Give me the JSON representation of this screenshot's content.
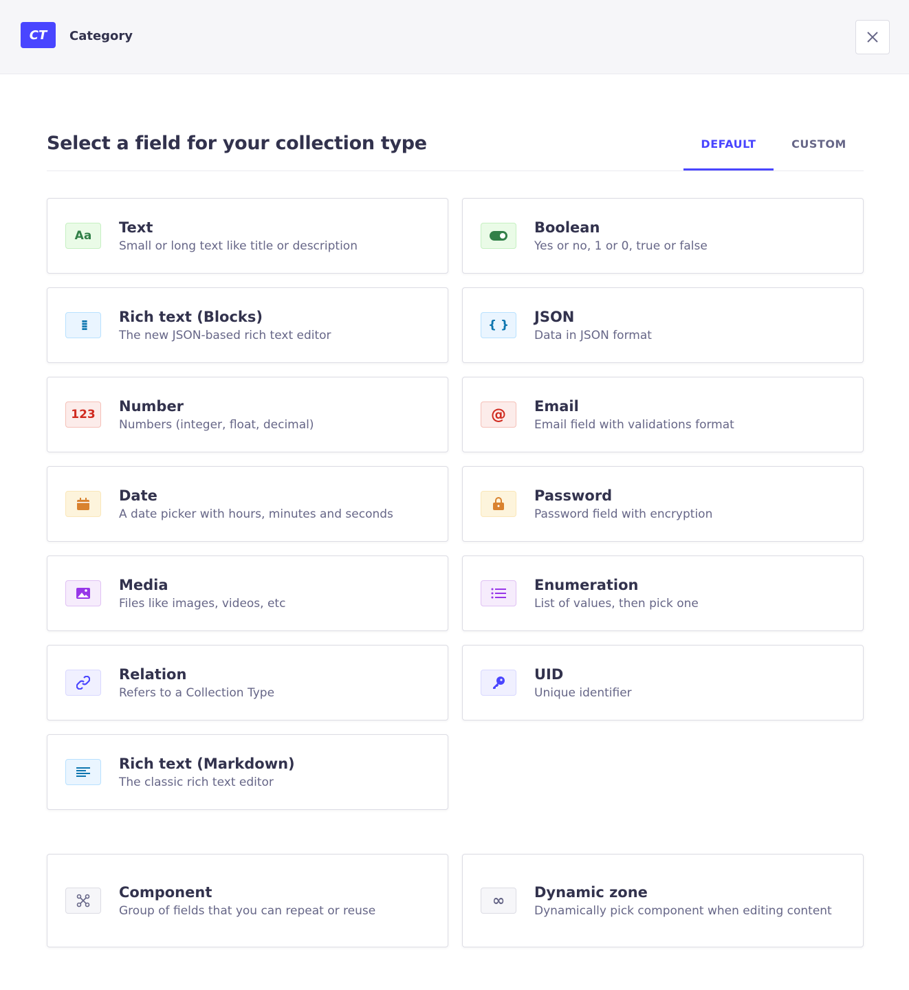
{
  "header": {
    "badge": "CT",
    "name": "Category"
  },
  "title": "Select a field for your collection type",
  "tabs": [
    {
      "label": "DEFAULT",
      "active": true
    },
    {
      "label": "CUSTOM",
      "active": false
    }
  ],
  "fields": [
    {
      "name": "Text",
      "desc": "Small or long text like title or description",
      "icon": "text-icon",
      "glyph": "Aa",
      "theme": "green"
    },
    {
      "name": "Boolean",
      "desc": "Yes or no, 1 or 0, true or false",
      "icon": "toggle-icon",
      "glyph": "toggle",
      "theme": "green"
    },
    {
      "name": "Rich text (Blocks)",
      "desc": "The new JSON-based rich text editor",
      "icon": "blocks-icon",
      "glyph": "⁞⁞",
      "theme": "blue"
    },
    {
      "name": "JSON",
      "desc": "Data in JSON format",
      "icon": "braces-icon",
      "glyph": "{ }",
      "theme": "blue"
    },
    {
      "name": "Number",
      "desc": "Numbers (integer, float, decimal)",
      "icon": "number-icon",
      "glyph": "123",
      "theme": "red"
    },
    {
      "name": "Email",
      "desc": "Email field with validations format",
      "icon": "at-icon",
      "glyph": "@",
      "theme": "red"
    },
    {
      "name": "Date",
      "desc": "A date picker with hours, minutes and seconds",
      "icon": "calendar-icon",
      "glyph": "calendar",
      "theme": "orange"
    },
    {
      "name": "Password",
      "desc": "Password field with encryption",
      "icon": "lock-icon",
      "glyph": "lock",
      "theme": "orange"
    },
    {
      "name": "Media",
      "desc": "Files like images, videos, etc",
      "icon": "image-icon",
      "glyph": "image",
      "theme": "purple"
    },
    {
      "name": "Enumeration",
      "desc": "List of values, then pick one",
      "icon": "list-icon",
      "glyph": "list",
      "theme": "purple"
    },
    {
      "name": "Relation",
      "desc": "Refers to a Collection Type",
      "icon": "link-icon",
      "glyph": "link",
      "theme": "indigo"
    },
    {
      "name": "UID",
      "desc": "Unique identifier",
      "icon": "key-icon",
      "glyph": "key",
      "theme": "indigo"
    },
    {
      "name": "Rich text (Markdown)",
      "desc": "The classic rich text editor",
      "icon": "paragraph-icon",
      "glyph": "lines",
      "theme": "blue"
    }
  ],
  "extra_fields": [
    {
      "name": "Component",
      "desc": "Group of fields that you can repeat or reuse",
      "icon": "component-icon",
      "glyph": "component",
      "theme": "neutral"
    },
    {
      "name": "Dynamic zone",
      "desc": "Dynamically pick component when editing content",
      "icon": "infinity-icon",
      "glyph": "∞",
      "theme": "neutral"
    }
  ],
  "themes": {
    "green": {
      "bg": "#eafbe7",
      "border": "#c6f0c2",
      "fg": "#328048"
    },
    "blue": {
      "bg": "#eaf5ff",
      "border": "#b8e1ff",
      "fg": "#0c75af"
    },
    "red": {
      "bg": "#fcecea",
      "border": "#f5c0b8",
      "fg": "#d02b20"
    },
    "orange": {
      "bg": "#fdf4dc",
      "border": "#fae7b9",
      "fg": "#d9822f"
    },
    "purple": {
      "bg": "#f6ecfc",
      "border": "#e0c1f4",
      "fg": "#9736e8"
    },
    "indigo": {
      "bg": "#f0f0ff",
      "border": "#d9d8ff",
      "fg": "#4945ff"
    },
    "neutral": {
      "bg": "#f6f6f9",
      "border": "#dcdce4",
      "fg": "#666687"
    }
  }
}
